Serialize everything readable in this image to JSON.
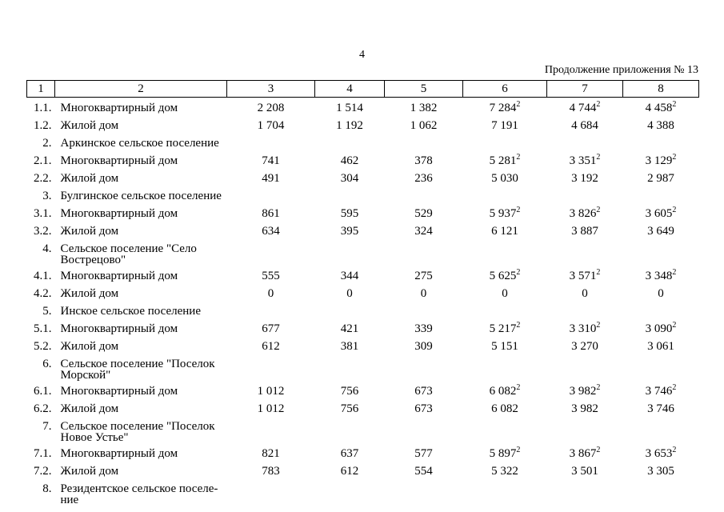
{
  "page": {
    "number": "4",
    "continuation": "Продолжение приложения № 13"
  },
  "table": {
    "header": [
      "1",
      "2",
      "3",
      "4",
      "5",
      "6",
      "7",
      "8"
    ],
    "rows": [
      {
        "num": "1.1.",
        "lines": [
          "Многоквартирный дом"
        ],
        "values": [
          "2 208",
          "1 514",
          "1 382",
          {
            "v": "7 284",
            "sup": "2"
          },
          {
            "v": "4 744",
            "sup": "2"
          },
          {
            "v": "4 458",
            "sup": "2"
          }
        ]
      },
      {
        "num": "1.2.",
        "lines": [
          "Жилой дом"
        ],
        "values": [
          "1 704",
          "1 192",
          "1 062",
          "7 191",
          "4 684",
          "4 388"
        ]
      },
      {
        "num": "2.",
        "lines": [
          "Аркинское сельское поселение"
        ],
        "values": []
      },
      {
        "num": "2.1.",
        "lines": [
          "Многоквартирный дом"
        ],
        "values": [
          "741",
          "462",
          "378",
          {
            "v": "5 281",
            "sup": "2"
          },
          {
            "v": "3 351",
            "sup": "2"
          },
          {
            "v": "3 129",
            "sup": "2"
          }
        ]
      },
      {
        "num": "2.2.",
        "lines": [
          "Жилой дом"
        ],
        "values": [
          "491",
          "304",
          "236",
          "5 030",
          "3 192",
          "2 987"
        ]
      },
      {
        "num": "3.",
        "lines": [
          "Булгинское сельское поселение"
        ],
        "values": []
      },
      {
        "num": "3.1.",
        "lines": [
          "Многоквартирный дом"
        ],
        "values": [
          "861",
          "595",
          "529",
          {
            "v": "5 937",
            "sup": "2"
          },
          {
            "v": "3 826",
            "sup": "2"
          },
          {
            "v": "3 605",
            "sup": "2"
          }
        ]
      },
      {
        "num": "3.2.",
        "lines": [
          "Жилой дом"
        ],
        "values": [
          "634",
          "395",
          "324",
          "6 121",
          "3 887",
          "3 649"
        ]
      },
      {
        "num": "4.",
        "lines": [
          "Сельское поселение \"Село",
          "Вострецово\""
        ],
        "values": []
      },
      {
        "num": "4.1.",
        "lines": [
          "Многоквартирный дом"
        ],
        "values": [
          "555",
          "344",
          "275",
          {
            "v": "5 625",
            "sup": "2"
          },
          {
            "v": "3 571",
            "sup": "2"
          },
          {
            "v": "3 348",
            "sup": "2"
          }
        ]
      },
      {
        "num": "4.2.",
        "lines": [
          "Жилой дом"
        ],
        "values": [
          "0",
          "0",
          "0",
          "0",
          "0",
          "0"
        ]
      },
      {
        "num": "5.",
        "lines": [
          "Инское сельское поселение"
        ],
        "values": []
      },
      {
        "num": "5.1.",
        "lines": [
          "Многоквартирный дом"
        ],
        "values": [
          "677",
          "421",
          "339",
          {
            "v": "5 217",
            "sup": "2"
          },
          {
            "v": "3 310",
            "sup": "2"
          },
          {
            "v": "3 090",
            "sup": "2"
          }
        ]
      },
      {
        "num": "5.2.",
        "lines": [
          "Жилой дом"
        ],
        "values": [
          "612",
          "381",
          "309",
          "5 151",
          "3 270",
          "3 061"
        ]
      },
      {
        "num": "6.",
        "lines": [
          "Сельское поселение \"Поселок",
          "Морской\""
        ],
        "values": []
      },
      {
        "num": "6.1.",
        "lines": [
          "Многоквартирный дом"
        ],
        "values": [
          "1 012",
          "756",
          "673",
          {
            "v": "6 082",
            "sup": "2"
          },
          {
            "v": "3 982",
            "sup": "2"
          },
          {
            "v": "3 746",
            "sup": "2"
          }
        ]
      },
      {
        "num": "6.2.",
        "lines": [
          "Жилой дом"
        ],
        "values": [
          "1 012",
          "756",
          "673",
          "6 082",
          "3 982",
          "3 746"
        ]
      },
      {
        "num": "7.",
        "lines": [
          "Сельское поселение \"Поселок",
          "Новое Устье\""
        ],
        "values": []
      },
      {
        "num": "7.1.",
        "lines": [
          "Многоквартирный дом"
        ],
        "values": [
          "821",
          "637",
          "577",
          {
            "v": "5 897",
            "sup": "2"
          },
          {
            "v": "3 867",
            "sup": "2"
          },
          {
            "v": "3 653",
            "sup": "2"
          }
        ]
      },
      {
        "num": "7.2.",
        "lines": [
          "Жилой дом"
        ],
        "values": [
          "783",
          "612",
          "554",
          "5 322",
          "3 501",
          "3 305"
        ]
      },
      {
        "num": "8.",
        "lines": [
          "Резидентское сельское поселе-",
          "ние"
        ],
        "values": []
      }
    ]
  }
}
